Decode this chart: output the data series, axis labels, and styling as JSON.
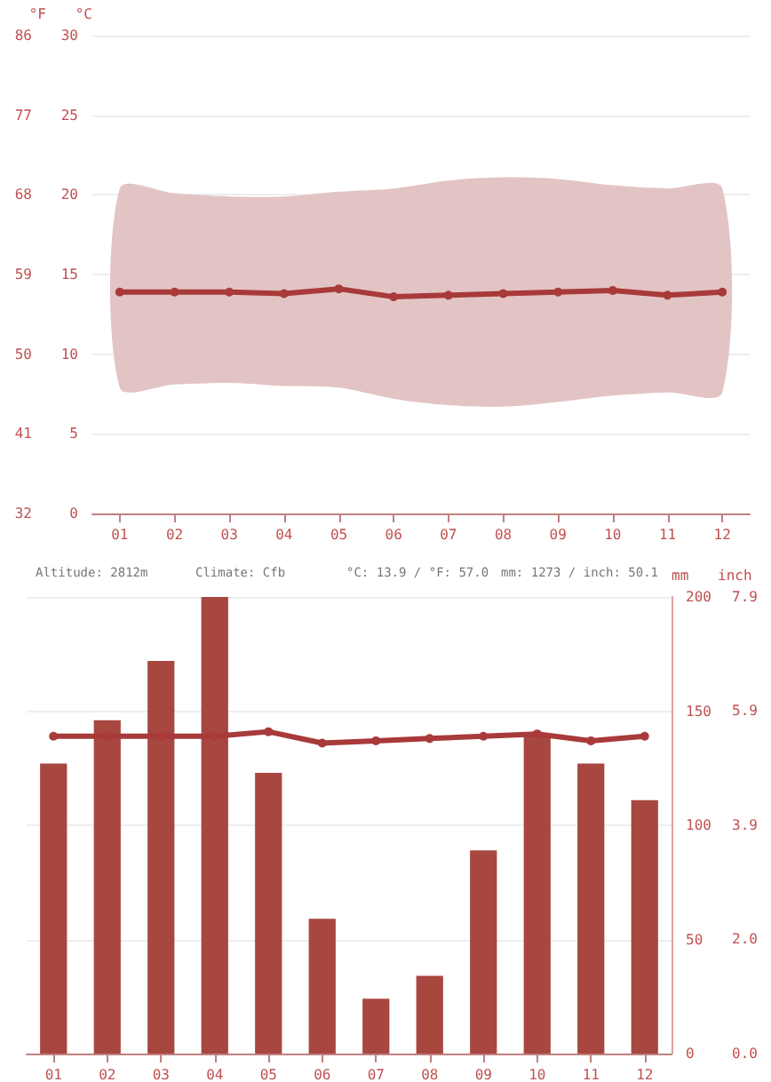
{
  "chart_data": [
    {
      "type": "line",
      "categories": [
        "01",
        "02",
        "03",
        "04",
        "05",
        "06",
        "07",
        "08",
        "09",
        "10",
        "11",
        "12"
      ],
      "series": [
        {
          "color": "#a83a3a",
          "values": [
            13.9,
            13.9,
            13.9,
            13.8,
            14.1,
            13.6,
            13.7,
            13.8,
            13.9,
            14.0,
            13.7,
            13.9
          ],
          "lower": [
            7.9,
            8.1,
            8.2,
            8.0,
            7.9,
            7.2,
            6.8,
            6.7,
            7.0,
            7.4,
            7.6,
            7.6
          ],
          "upper": [
            20.4,
            20.1,
            19.9,
            19.9,
            20.2,
            20.4,
            20.9,
            21.1,
            21.0,
            20.6,
            20.4,
            20.4
          ]
        }
      ],
      "ylabel": "°C",
      "y2label": "°F",
      "ylim": [
        0,
        30
      ],
      "yticks": [
        0,
        5,
        10,
        15,
        20,
        25,
        30
      ],
      "y2lim": [
        32,
        86
      ],
      "y2ticks": [
        32,
        41,
        50,
        59,
        68,
        77,
        86
      ],
      "grid": "y",
      "marker": "circle",
      "line_style": "solid"
    },
    {
      "type": "bar",
      "categories": [
        "01",
        "02",
        "03",
        "04",
        "05",
        "06",
        "07",
        "08",
        "09",
        "10",
        "11",
        "12"
      ],
      "series": [
        {
          "color": "#a84640",
          "values": [
            127,
            146,
            172,
            200,
            123,
            59,
            24,
            34,
            89,
            139,
            127,
            111
          ]
        },
        {
          "type": "line",
          "color": "#a83a3a",
          "values": [
            139,
            139,
            139,
            139,
            141,
            136,
            137,
            138,
            139,
            140,
            137,
            139
          ]
        }
      ],
      "ylabel": "mm",
      "y2label": "inch",
      "ylim": [
        0,
        200
      ],
      "yticks": [
        0,
        50,
        100,
        150,
        200
      ],
      "y2lim": [
        0,
        7.87
      ],
      "y2ticks": [
        {
          "value": 0,
          "label": "0.0"
        },
        {
          "value": 1.97,
          "label": "2.0"
        },
        {
          "value": 3.94,
          "label": "3.9"
        },
        {
          "value": 5.91,
          "label": "5.9"
        },
        {
          "value": 7.87,
          "label": "7.9"
        }
      ],
      "annotations": [
        "Altitude: 2812m",
        "Climate: Cfb",
        "°C: 13.9 / °F: 57.0",
        "mm: 1273 / inch: 50.1"
      ],
      "grid": "y",
      "marker": "circle",
      "line_style": "solid"
    }
  ]
}
